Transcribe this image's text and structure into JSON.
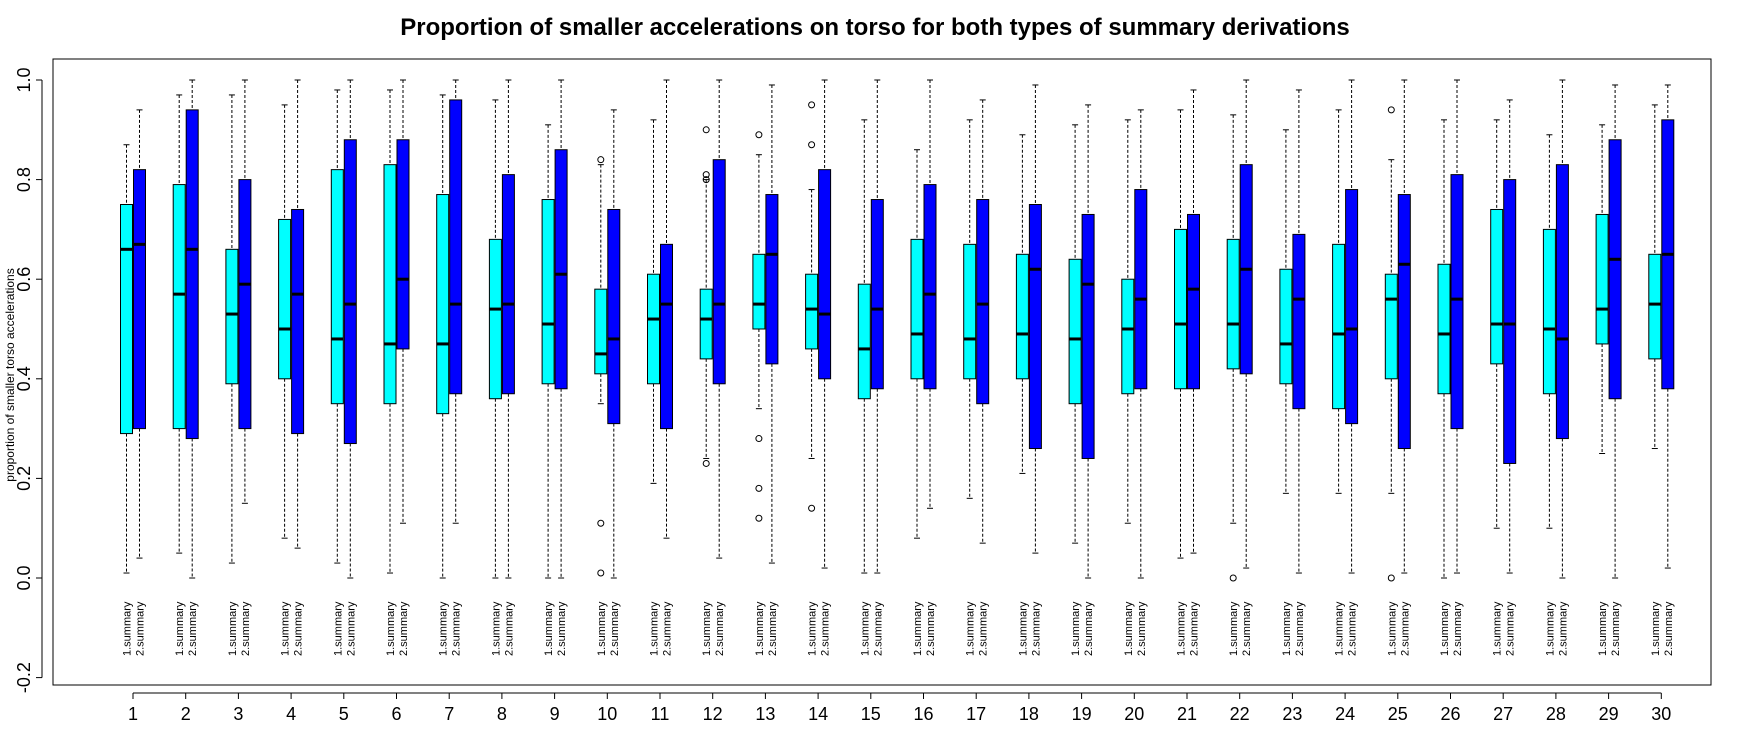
{
  "chart_data": {
    "type": "boxplot",
    "title": "Proportion of smaller accelerations on torso for both types of summary derivations",
    "xlabel": "",
    "ylabel": "proportion of smaller torso accelerations",
    "ylim": [
      -0.2,
      1.0
    ],
    "yticks": [
      -0.2,
      0.0,
      0.2,
      0.4,
      0.6,
      0.8,
      1.0
    ],
    "ytick_labels": [
      "-0.2",
      "0.0",
      "0.2",
      "0.4",
      "0.6",
      "0.8",
      "1.0"
    ],
    "categories": [
      "1",
      "2",
      "3",
      "4",
      "5",
      "6",
      "7",
      "8",
      "9",
      "10",
      "11",
      "12",
      "13",
      "14",
      "15",
      "16",
      "17",
      "18",
      "19",
      "20",
      "21",
      "22",
      "23",
      "24",
      "25",
      "26",
      "27",
      "28",
      "29",
      "30"
    ],
    "series_labels": [
      "1.summary",
      "2.summary"
    ],
    "colors": {
      "summary1": "#00FFFF",
      "summary2": "#0000FF"
    },
    "groups": [
      {
        "g": 1,
        "s1": {
          "min": 0.01,
          "q1": 0.29,
          "med": 0.66,
          "q3": 0.75,
          "max": 0.87,
          "out": []
        },
        "s2": {
          "min": 0.04,
          "q1": 0.3,
          "med": 0.67,
          "q3": 0.82,
          "max": 0.94,
          "out": []
        }
      },
      {
        "g": 2,
        "s1": {
          "min": 0.05,
          "q1": 0.3,
          "med": 0.57,
          "q3": 0.79,
          "max": 0.97,
          "out": []
        },
        "s2": {
          "min": 0.0,
          "q1": 0.28,
          "med": 0.66,
          "q3": 0.94,
          "max": 1.0,
          "out": []
        }
      },
      {
        "g": 3,
        "s1": {
          "min": 0.03,
          "q1": 0.39,
          "med": 0.53,
          "q3": 0.66,
          "max": 0.97,
          "out": []
        },
        "s2": {
          "min": 0.15,
          "q1": 0.3,
          "med": 0.59,
          "q3": 0.8,
          "max": 1.0,
          "out": []
        }
      },
      {
        "g": 4,
        "s1": {
          "min": 0.08,
          "q1": 0.4,
          "med": 0.5,
          "q3": 0.72,
          "max": 0.95,
          "out": []
        },
        "s2": {
          "min": 0.06,
          "q1": 0.29,
          "med": 0.57,
          "q3": 0.74,
          "max": 1.0,
          "out": []
        }
      },
      {
        "g": 5,
        "s1": {
          "min": 0.03,
          "q1": 0.35,
          "med": 0.48,
          "q3": 0.82,
          "max": 0.98,
          "out": []
        },
        "s2": {
          "min": 0.0,
          "q1": 0.27,
          "med": 0.55,
          "q3": 0.88,
          "max": 1.0,
          "out": []
        }
      },
      {
        "g": 6,
        "s1": {
          "min": 0.01,
          "q1": 0.35,
          "med": 0.47,
          "q3": 0.83,
          "max": 0.98,
          "out": []
        },
        "s2": {
          "min": 0.11,
          "q1": 0.46,
          "med": 0.6,
          "q3": 0.88,
          "max": 1.0,
          "out": []
        }
      },
      {
        "g": 7,
        "s1": {
          "min": 0.0,
          "q1": 0.33,
          "med": 0.47,
          "q3": 0.77,
          "max": 0.97,
          "out": []
        },
        "s2": {
          "min": 0.11,
          "q1": 0.37,
          "med": 0.55,
          "q3": 0.96,
          "max": 1.0,
          "out": []
        }
      },
      {
        "g": 8,
        "s1": {
          "min": 0.0,
          "q1": 0.36,
          "med": 0.54,
          "q3": 0.68,
          "max": 0.96,
          "out": []
        },
        "s2": {
          "min": 0.0,
          "q1": 0.37,
          "med": 0.55,
          "q3": 0.81,
          "max": 1.0,
          "out": []
        }
      },
      {
        "g": 9,
        "s1": {
          "min": 0.0,
          "q1": 0.39,
          "med": 0.51,
          "q3": 0.76,
          "max": 0.91,
          "out": []
        },
        "s2": {
          "min": 0.0,
          "q1": 0.38,
          "med": 0.61,
          "q3": 0.86,
          "max": 1.0,
          "out": []
        }
      },
      {
        "g": 10,
        "s1": {
          "min": 0.35,
          "q1": 0.41,
          "med": 0.45,
          "q3": 0.58,
          "max": 0.83,
          "out": [
            0.84,
            0.11,
            0.01
          ]
        },
        "s2": {
          "min": 0.0,
          "q1": 0.31,
          "med": 0.48,
          "q3": 0.74,
          "max": 0.94,
          "out": []
        }
      },
      {
        "g": 11,
        "s1": {
          "min": 0.19,
          "q1": 0.39,
          "med": 0.52,
          "q3": 0.61,
          "max": 0.92,
          "out": []
        },
        "s2": {
          "min": 0.08,
          "q1": 0.3,
          "med": 0.55,
          "q3": 0.67,
          "max": 1.0,
          "out": []
        }
      },
      {
        "g": 12,
        "s1": {
          "min": 0.24,
          "q1": 0.44,
          "med": 0.52,
          "q3": 0.58,
          "max": 0.8,
          "out": [
            0.9,
            0.81,
            0.8,
            0.23
          ]
        },
        "s2": {
          "min": 0.04,
          "q1": 0.39,
          "med": 0.55,
          "q3": 0.84,
          "max": 1.0,
          "out": []
        }
      },
      {
        "g": 13,
        "s1": {
          "min": 0.34,
          "q1": 0.5,
          "med": 0.55,
          "q3": 0.65,
          "max": 0.85,
          "out": [
            0.89,
            0.28,
            0.18,
            0.12
          ]
        },
        "s2": {
          "min": 0.03,
          "q1": 0.43,
          "med": 0.65,
          "q3": 0.77,
          "max": 0.99,
          "out": []
        }
      },
      {
        "g": 14,
        "s1": {
          "min": 0.24,
          "q1": 0.46,
          "med": 0.54,
          "q3": 0.61,
          "max": 0.78,
          "out": [
            0.95,
            0.87,
            0.14
          ]
        },
        "s2": {
          "min": 0.02,
          "q1": 0.4,
          "med": 0.53,
          "q3": 0.82,
          "max": 1.0,
          "out": []
        }
      },
      {
        "g": 15,
        "s1": {
          "min": 0.01,
          "q1": 0.36,
          "med": 0.46,
          "q3": 0.59,
          "max": 0.92,
          "out": []
        },
        "s2": {
          "min": 0.01,
          "q1": 0.38,
          "med": 0.54,
          "q3": 0.76,
          "max": 1.0,
          "out": []
        }
      },
      {
        "g": 16,
        "s1": {
          "min": 0.08,
          "q1": 0.4,
          "med": 0.49,
          "q3": 0.68,
          "max": 0.86,
          "out": []
        },
        "s2": {
          "min": 0.14,
          "q1": 0.38,
          "med": 0.57,
          "q3": 0.79,
          "max": 1.0,
          "out": []
        }
      },
      {
        "g": 17,
        "s1": {
          "min": 0.16,
          "q1": 0.4,
          "med": 0.48,
          "q3": 0.67,
          "max": 0.92,
          "out": []
        },
        "s2": {
          "min": 0.07,
          "q1": 0.35,
          "med": 0.55,
          "q3": 0.76,
          "max": 0.96,
          "out": []
        }
      },
      {
        "g": 18,
        "s1": {
          "min": 0.21,
          "q1": 0.4,
          "med": 0.49,
          "q3": 0.65,
          "max": 0.89,
          "out": []
        },
        "s2": {
          "min": 0.05,
          "q1": 0.26,
          "med": 0.62,
          "q3": 0.75,
          "max": 0.99,
          "out": []
        }
      },
      {
        "g": 19,
        "s1": {
          "min": 0.07,
          "q1": 0.35,
          "med": 0.48,
          "q3": 0.64,
          "max": 0.91,
          "out": []
        },
        "s2": {
          "min": 0.0,
          "q1": 0.24,
          "med": 0.59,
          "q3": 0.73,
          "max": 0.95,
          "out": []
        }
      },
      {
        "g": 20,
        "s1": {
          "min": 0.11,
          "q1": 0.37,
          "med": 0.5,
          "q3": 0.6,
          "max": 0.92,
          "out": []
        },
        "s2": {
          "min": 0.0,
          "q1": 0.38,
          "med": 0.56,
          "q3": 0.78,
          "max": 0.94,
          "out": []
        }
      },
      {
        "g": 21,
        "s1": {
          "min": 0.04,
          "q1": 0.38,
          "med": 0.51,
          "q3": 0.7,
          "max": 0.94,
          "out": []
        },
        "s2": {
          "min": 0.05,
          "q1": 0.38,
          "med": 0.58,
          "q3": 0.73,
          "max": 0.98,
          "out": []
        }
      },
      {
        "g": 22,
        "s1": {
          "min": 0.11,
          "q1": 0.42,
          "med": 0.51,
          "q3": 0.68,
          "max": 0.93,
          "out": [
            0.0
          ]
        },
        "s2": {
          "min": 0.02,
          "q1": 0.41,
          "med": 0.62,
          "q3": 0.83,
          "max": 1.0,
          "out": []
        }
      },
      {
        "g": 23,
        "s1": {
          "min": 0.17,
          "q1": 0.39,
          "med": 0.47,
          "q3": 0.62,
          "max": 0.9,
          "out": []
        },
        "s2": {
          "min": 0.01,
          "q1": 0.34,
          "med": 0.56,
          "q3": 0.69,
          "max": 0.98,
          "out": []
        }
      },
      {
        "g": 24,
        "s1": {
          "min": 0.17,
          "q1": 0.34,
          "med": 0.49,
          "q3": 0.67,
          "max": 0.94,
          "out": []
        },
        "s2": {
          "min": 0.01,
          "q1": 0.31,
          "med": 0.5,
          "q3": 0.78,
          "max": 1.0,
          "out": []
        }
      },
      {
        "g": 25,
        "s1": {
          "min": 0.17,
          "q1": 0.4,
          "med": 0.56,
          "q3": 0.61,
          "max": 0.84,
          "out": [
            0.94,
            0.0
          ]
        },
        "s2": {
          "min": 0.01,
          "q1": 0.26,
          "med": 0.63,
          "q3": 0.77,
          "max": 1.0,
          "out": []
        }
      },
      {
        "g": 26,
        "s1": {
          "min": 0.0,
          "q1": 0.37,
          "med": 0.49,
          "q3": 0.63,
          "max": 0.92,
          "out": []
        },
        "s2": {
          "min": 0.01,
          "q1": 0.3,
          "med": 0.56,
          "q3": 0.81,
          "max": 1.0,
          "out": []
        }
      },
      {
        "g": 27,
        "s1": {
          "min": 0.1,
          "q1": 0.43,
          "med": 0.51,
          "q3": 0.74,
          "max": 0.92,
          "out": []
        },
        "s2": {
          "min": 0.01,
          "q1": 0.23,
          "med": 0.51,
          "q3": 0.8,
          "max": 0.96,
          "out": []
        }
      },
      {
        "g": 28,
        "s1": {
          "min": 0.1,
          "q1": 0.37,
          "med": 0.5,
          "q3": 0.7,
          "max": 0.89,
          "out": []
        },
        "s2": {
          "min": 0.0,
          "q1": 0.28,
          "med": 0.48,
          "q3": 0.83,
          "max": 1.0,
          "out": []
        }
      },
      {
        "g": 29,
        "s1": {
          "min": 0.25,
          "q1": 0.47,
          "med": 0.54,
          "q3": 0.73,
          "max": 0.91,
          "out": []
        },
        "s2": {
          "min": 0.0,
          "q1": 0.36,
          "med": 0.64,
          "q3": 0.88,
          "max": 0.99,
          "out": []
        }
      },
      {
        "g": 30,
        "s1": {
          "min": 0.26,
          "q1": 0.44,
          "med": 0.55,
          "q3": 0.65,
          "max": 0.95,
          "out": []
        },
        "s2": {
          "min": 0.02,
          "q1": 0.38,
          "med": 0.65,
          "q3": 0.92,
          "max": 0.99,
          "out": []
        }
      }
    ],
    "grid": false,
    "legend": "none"
  }
}
